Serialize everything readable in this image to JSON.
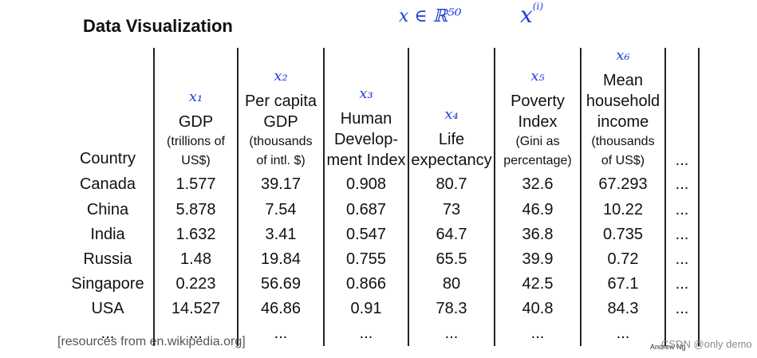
{
  "title": "Data Visualization",
  "annotations": {
    "x_in_r": "x ∈ ℝ⁵⁰",
    "x_power_base": "x",
    "x_power_exp": "(i)"
  },
  "table": {
    "headers": [
      {
        "x_label": "",
        "lines": [
          "Country"
        ],
        "sub": []
      },
      {
        "x_label": "x₁",
        "lines": [
          "GDP"
        ],
        "sub": [
          "(trillions of",
          "US$)"
        ]
      },
      {
        "x_label": "x₂",
        "lines": [
          "Per capita",
          "GDP"
        ],
        "sub": [
          "(thousands",
          "of intl. $)"
        ]
      },
      {
        "x_label": "x₃",
        "lines": [
          "Human",
          "Develop-",
          "ment Index"
        ],
        "sub": []
      },
      {
        "x_label": "x₄",
        "lines": [
          "Life",
          "expectancy"
        ],
        "sub": []
      },
      {
        "x_label": "x₅",
        "lines": [
          "Poverty",
          "Index"
        ],
        "sub": [
          "(Gini as",
          "percentage)"
        ]
      },
      {
        "x_label": "x₆",
        "lines": [
          "Mean",
          "household",
          "income"
        ],
        "sub": [
          "(thousands",
          "of US$)"
        ]
      },
      {
        "x_label": "",
        "lines": [
          "..."
        ],
        "sub": []
      }
    ],
    "rows": [
      [
        "Canada",
        "1.577",
        "39.17",
        "0.908",
        "80.7",
        "32.6",
        "67.293",
        "..."
      ],
      [
        "China",
        "5.878",
        "7.54",
        "0.687",
        "73",
        "46.9",
        "10.22",
        "..."
      ],
      [
        "India",
        "1.632",
        "3.41",
        "0.547",
        "64.7",
        "36.8",
        "0.735",
        "..."
      ],
      [
        "Russia",
        "1.48",
        "19.84",
        "0.755",
        "65.5",
        "39.9",
        "0.72",
        "..."
      ],
      [
        "Singapore",
        "0.223",
        "56.69",
        "0.866",
        "80",
        "42.5",
        "67.1",
        "..."
      ],
      [
        "USA",
        "14.527",
        "46.86",
        "0.91",
        "78.3",
        "40.8",
        "84.3",
        "..."
      ],
      [
        "...",
        "...",
        "...",
        "...",
        "...",
        "...",
        "...",
        ""
      ]
    ]
  },
  "source": "[resources from en.wikipedia.org]",
  "author": "Andrew Ng",
  "watermark": "CSDN @only demo"
}
